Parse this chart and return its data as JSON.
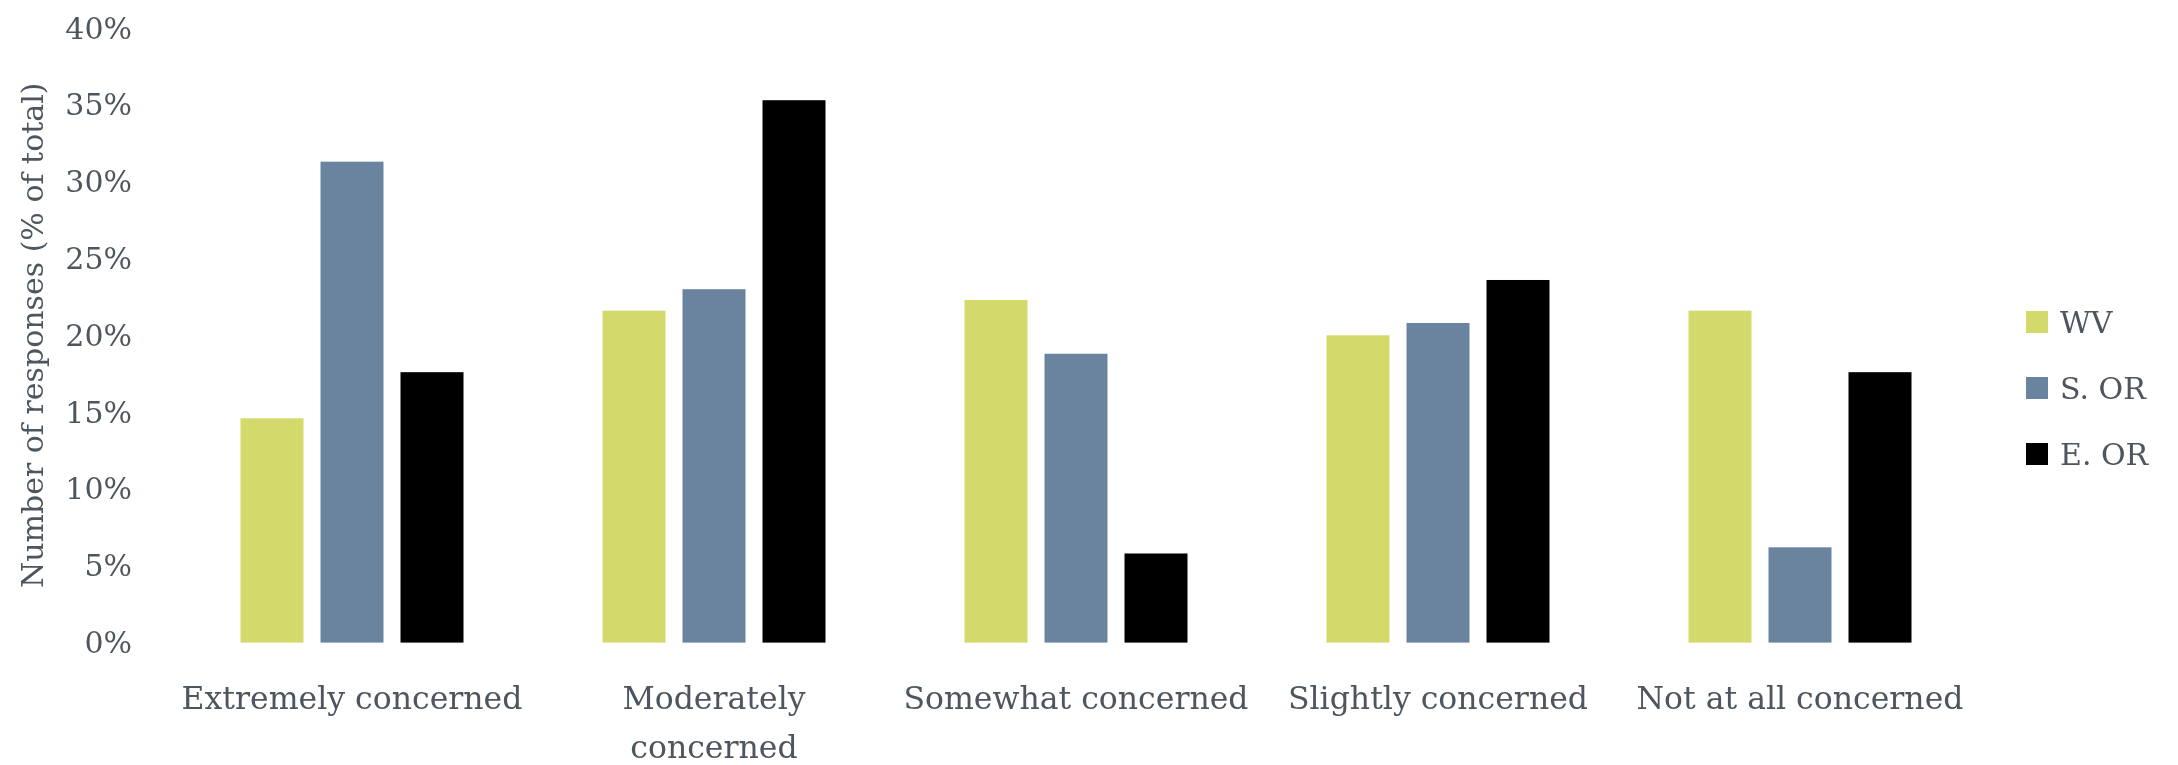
{
  "chart_data": {
    "type": "bar",
    "ylabel": "Number of responses (% of total)",
    "categories": [
      "Extremely concerned",
      "Moderately concerned",
      "Somewhat concerned",
      "Slightly concerned",
      "Not at all concerned"
    ],
    "series": [
      {
        "name": "WV",
        "color": "#d4d96b",
        "values": [
          14.6,
          21.6,
          22.3,
          20.0,
          21.6
        ]
      },
      {
        "name": "S. OR",
        "color": "#6a839f",
        "values": [
          31.3,
          23.0,
          18.8,
          20.8,
          6.2
        ]
      },
      {
        "name": "E. OR",
        "color": "#000000",
        "values": [
          17.6,
          35.3,
          5.8,
          23.6,
          17.6
        ]
      }
    ],
    "ylim": [
      0,
      40
    ],
    "yticks": [
      {
        "value": 0,
        "label": "0%"
      },
      {
        "value": 5,
        "label": "5%"
      },
      {
        "value": 10,
        "label": "10%"
      },
      {
        "value": 15,
        "label": "15%"
      },
      {
        "value": 20,
        "label": "20%"
      },
      {
        "value": 25,
        "label": "25%"
      },
      {
        "value": 30,
        "label": "30%"
      },
      {
        "value": 35,
        "label": "35%"
      },
      {
        "value": 40,
        "label": "40%"
      }
    ],
    "legend": "right"
  }
}
